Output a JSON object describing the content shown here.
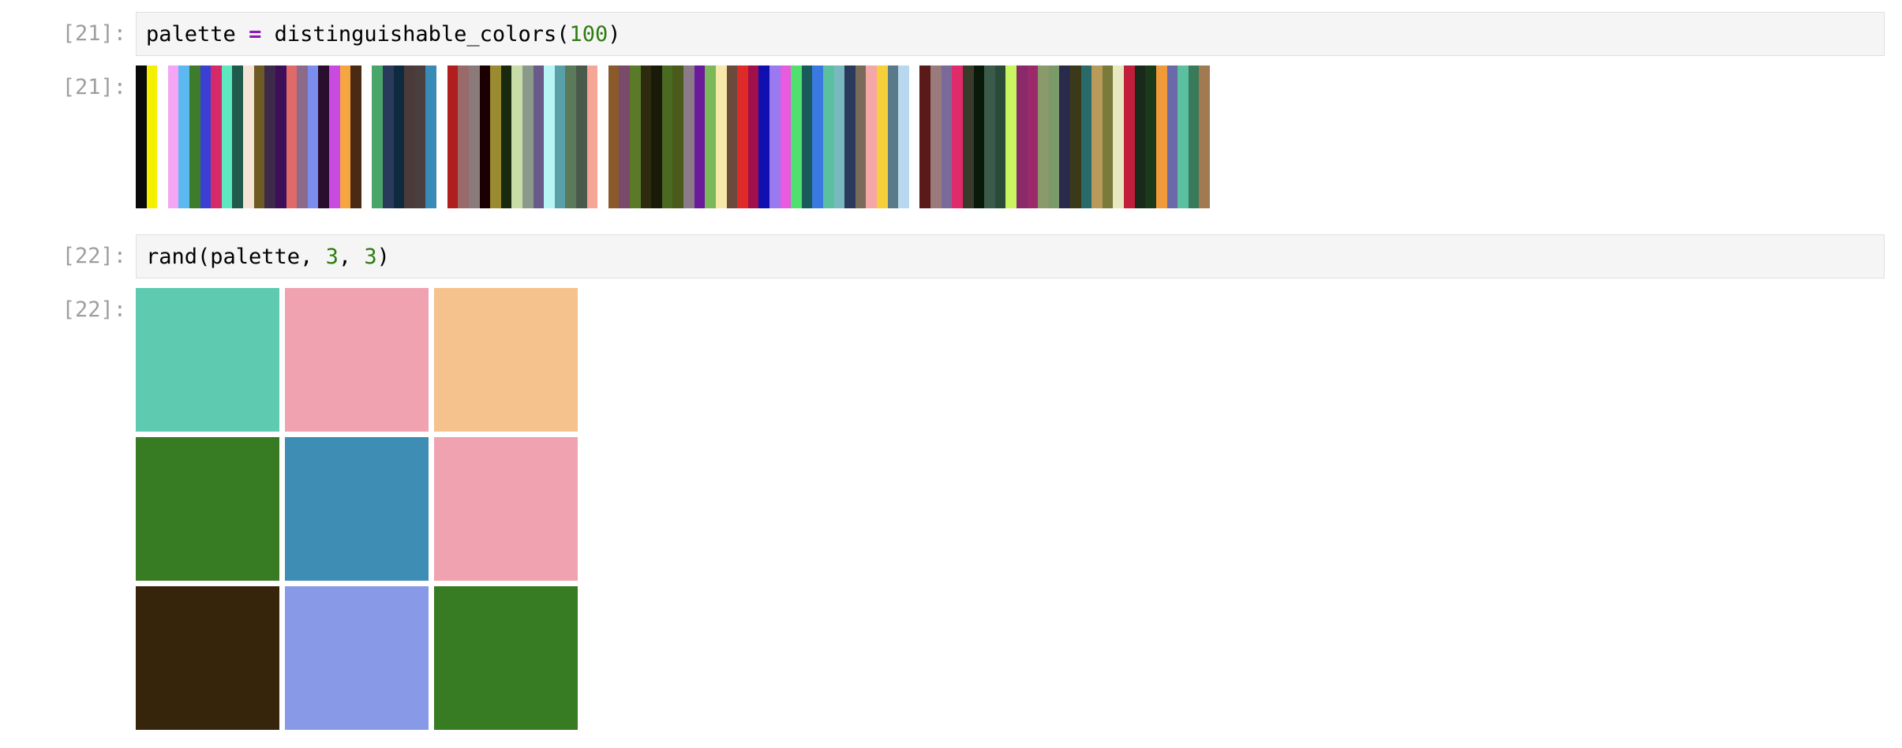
{
  "cells": [
    {
      "prompt_in": "[21]:",
      "code": {
        "var": "palette",
        "op": "=",
        "fn": "distinguishable_colors(",
        "arg": "100",
        "close": ")"
      },
      "prompt_out": "[21]:",
      "palette_colors": [
        "#0a0a0a",
        "#f5f000",
        "#ffffff",
        "#f4a6f4",
        "#5bb8f0",
        "#3e7b2a",
        "#3a3fd6",
        "#d42a6a",
        "#5ee8c0",
        "#1f5a4a",
        "#f5e3d8",
        "#6e5a22",
        "#3d2a4a",
        "#3e0e58",
        "#e06a6a",
        "#8b6a8a",
        "#7b8ef0",
        "#2a0e2e",
        "#c84ae0",
        "#f5a640",
        "#4a2a12",
        "#ffffff",
        "#4aa56a",
        "#2a3a5a",
        "#0e2a3e",
        "#4a3a3a",
        "#4a3e3e",
        "#3a8ab8",
        "#ffffff",
        "#b01e1e",
        "#9a6a6a",
        "#8b7a7a",
        "#1a0000",
        "#9a8a30",
        "#1a2a0e",
        "#c8dca8",
        "#8a9a8a",
        "#6a5a8a",
        "#b8f5f5",
        "#5aa0a8",
        "#5a7a5a",
        "#4a5a4a",
        "#f5a696",
        "#ffffff",
        "#8a5a2a",
        "#7a4a6a",
        "#5a7a2a",
        "#2e2a10",
        "#1a1a0a",
        "#4a6a22",
        "#4a5a1a",
        "#8a7a8a",
        "#6a1a9a",
        "#7ab85a",
        "#f5e8a8",
        "#6a4a3a",
        "#e02a2a",
        "#a0104a",
        "#1010b0",
        "#9a7af0",
        "#e85ae0",
        "#50e070",
        "#1a5a5a",
        "#3a7ae0",
        "#5ac0a0",
        "#7ab8c0",
        "#2a3a5a",
        "#7a6a5a",
        "#f5a6a6",
        "#f5d03a",
        "#5a7a8a",
        "#b8d8f0",
        "#ffffff",
        "#5a1a1a",
        "#9a7a7a",
        "#7a6a9a",
        "#e02a6a",
        "#3a3a2a",
        "#0a1a0a",
        "#3a5a4a",
        "#2a4a3a",
        "#c8f560",
        "#8a2a6a",
        "#9a2a6a",
        "#8a9a6a",
        "#7a9a6a",
        "#2a2a4a",
        "#3a3a1a",
        "#2a6a6a",
        "#b89a5a",
        "#7a7a3a",
        "#e8e8c0",
        "#c01e3a",
        "#1a2a1a",
        "#1a3a1a",
        "#f09a3a",
        "#6a6aa8",
        "#5ac0a0",
        "#3a7a5a",
        "#a07a50"
      ]
    },
    {
      "prompt_in": "[22]:",
      "code": {
        "fn": "rand(palette, ",
        "arg1": "3",
        "sep": ", ",
        "arg2": "3",
        "close": ")"
      },
      "prompt_out": "[22]:",
      "grid_colors": [
        [
          "#5ecbb1",
          "#f0a2b1",
          "#f5c18c"
        ],
        [
          "#377b22",
          "#3e8db4",
          "#f0a2b1"
        ],
        [
          "#36250b",
          "#8899e8",
          "#377b22"
        ]
      ]
    }
  ]
}
